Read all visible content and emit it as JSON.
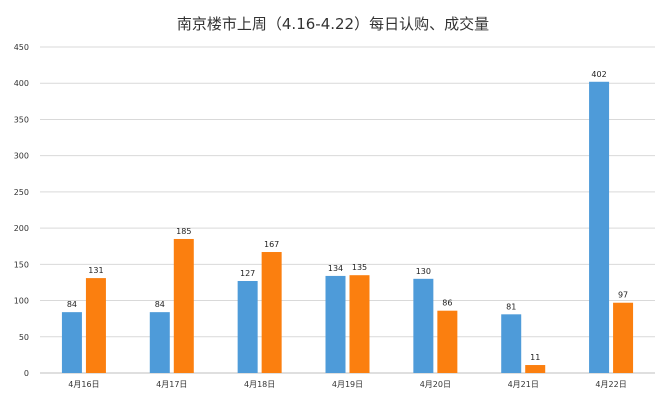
{
  "chart_data": {
    "type": "bar",
    "title": "南京楼市上周（4.16-4.22）每日认购、成交量",
    "xlabel": "",
    "ylabel": "",
    "ylim": [
      0,
      450
    ],
    "yticks": [
      0,
      50,
      100,
      150,
      200,
      250,
      300,
      350,
      400,
      450
    ],
    "grid": true,
    "legend": "none",
    "categories": [
      "4月16日",
      "4月17日",
      "4月18日",
      "4月19日",
      "4月20日",
      "4月21日",
      "4月22日"
    ],
    "series": [
      {
        "color": "#4e9bd9",
        "values": [
          84,
          84,
          127,
          134,
          130,
          81,
          402
        ]
      },
      {
        "color": "#fb7f0f",
        "values": [
          131,
          185,
          167,
          135,
          86,
          11,
          97
        ]
      }
    ]
  }
}
